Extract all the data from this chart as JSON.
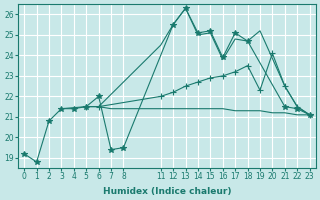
{
  "bg_color": "#c8e8e8",
  "grid_color": "#ffffff",
  "line_color": "#1a7a6e",
  "xlabel": "Humidex (Indice chaleur)",
  "xlim": [
    -0.5,
    23.5
  ],
  "ylim": [
    18.5,
    26.5
  ],
  "yticks": [
    19,
    20,
    21,
    22,
    23,
    24,
    25,
    26
  ],
  "xticks": [
    0,
    1,
    2,
    3,
    4,
    5,
    6,
    7,
    8,
    11,
    12,
    13,
    14,
    15,
    16,
    17,
    18,
    19,
    20,
    21,
    22,
    23
  ],
  "series": [
    {
      "x": [
        0,
        1,
        2,
        3,
        4,
        5,
        6,
        7,
        8,
        12,
        13,
        14,
        15,
        16,
        17,
        18,
        21,
        22,
        23
      ],
      "y": [
        19.2,
        18.8,
        20.8,
        21.4,
        21.4,
        21.5,
        22.0,
        19.4,
        19.5,
        25.5,
        26.3,
        25.1,
        25.2,
        23.9,
        25.1,
        24.7,
        21.5,
        21.4,
        21.1
      ],
      "marker": "*",
      "markersize": 4,
      "linestyle": "-"
    },
    {
      "x": [
        3,
        5,
        6,
        7,
        8,
        11,
        12,
        13,
        14,
        15,
        16,
        17,
        18,
        19,
        20,
        21,
        22,
        23
      ],
      "y": [
        21.4,
        21.5,
        21.5,
        21.4,
        21.4,
        21.4,
        21.4,
        21.4,
        21.4,
        21.4,
        21.4,
        21.3,
        21.3,
        21.3,
        21.2,
        21.2,
        21.1,
        21.1
      ],
      "marker": null,
      "markersize": 0,
      "linestyle": "-"
    },
    {
      "x": [
        5,
        6,
        11,
        12,
        13,
        14,
        15,
        16,
        17,
        18,
        19,
        20,
        21,
        22,
        23
      ],
      "y": [
        21.5,
        21.5,
        22.0,
        22.2,
        22.5,
        22.7,
        22.9,
        23.0,
        23.2,
        23.5,
        22.3,
        24.1,
        22.5,
        21.5,
        21.1
      ],
      "marker": "+",
      "markersize": 4,
      "linestyle": "-"
    },
    {
      "x": [
        6,
        11,
        12,
        13,
        14,
        15,
        16,
        17,
        18,
        19,
        21,
        22,
        23
      ],
      "y": [
        21.5,
        24.5,
        25.5,
        26.3,
        25.0,
        25.1,
        23.8,
        24.8,
        24.7,
        25.2,
        22.5,
        21.5,
        21.1
      ],
      "marker": null,
      "markersize": 0,
      "linestyle": "-"
    }
  ]
}
